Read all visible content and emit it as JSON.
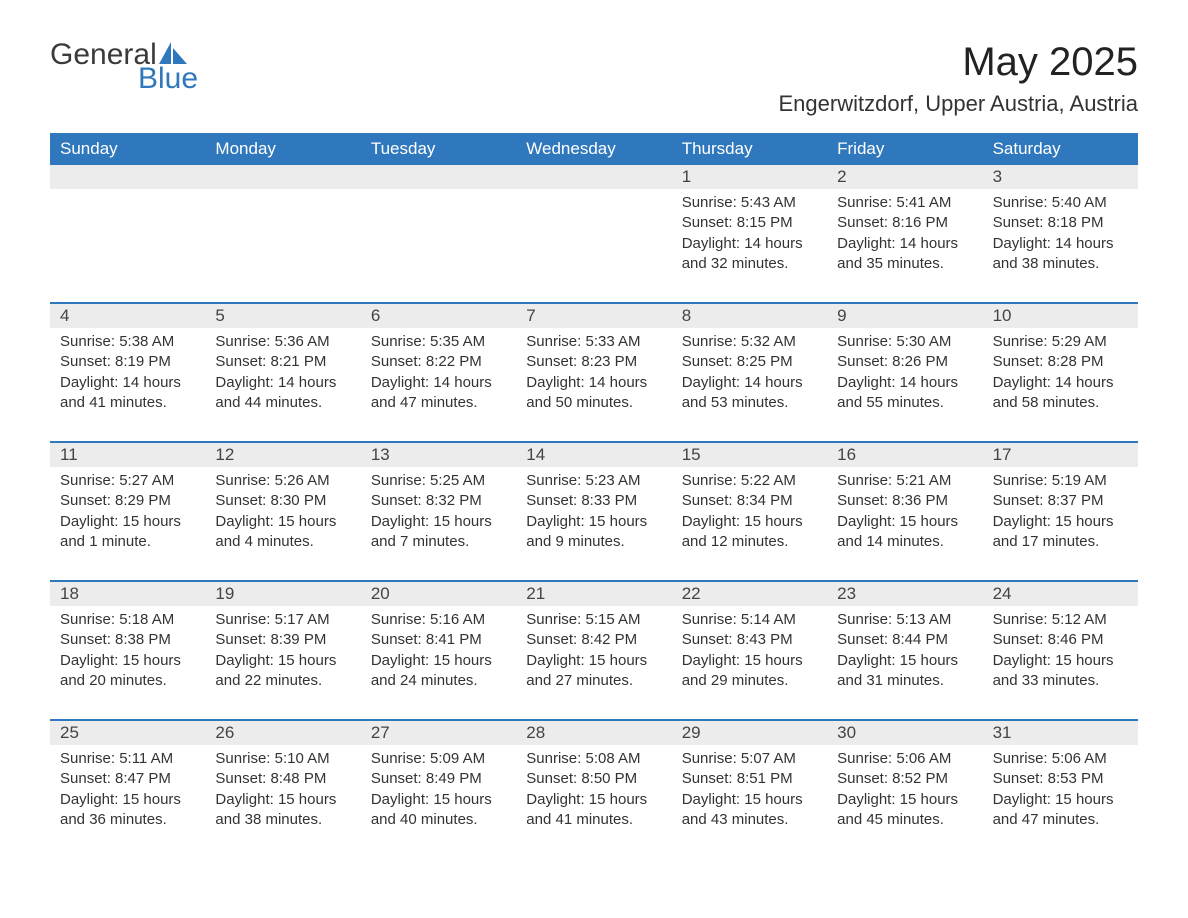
{
  "logo": {
    "text1": "General",
    "text2": "Blue"
  },
  "title": "May 2025",
  "location": "Engerwitzdorf, Upper Austria, Austria",
  "colors": {
    "header_bg": "#2f78bd",
    "header_text": "#ffffff",
    "daynum_bg": "#ececec",
    "text": "#333333",
    "logo_blue": "#2f78bd"
  },
  "dow": [
    "Sunday",
    "Monday",
    "Tuesday",
    "Wednesday",
    "Thursday",
    "Friday",
    "Saturday"
  ],
  "labels": {
    "sunrise": "Sunrise:",
    "sunset": "Sunset:",
    "daylight": "Daylight:"
  },
  "weeks": [
    [
      null,
      null,
      null,
      null,
      {
        "n": "1",
        "sr": "5:43 AM",
        "ss": "8:15 PM",
        "dl": "14 hours and 32 minutes."
      },
      {
        "n": "2",
        "sr": "5:41 AM",
        "ss": "8:16 PM",
        "dl": "14 hours and 35 minutes."
      },
      {
        "n": "3",
        "sr": "5:40 AM",
        "ss": "8:18 PM",
        "dl": "14 hours and 38 minutes."
      }
    ],
    [
      {
        "n": "4",
        "sr": "5:38 AM",
        "ss": "8:19 PM",
        "dl": "14 hours and 41 minutes."
      },
      {
        "n": "5",
        "sr": "5:36 AM",
        "ss": "8:21 PM",
        "dl": "14 hours and 44 minutes."
      },
      {
        "n": "6",
        "sr": "5:35 AM",
        "ss": "8:22 PM",
        "dl": "14 hours and 47 minutes."
      },
      {
        "n": "7",
        "sr": "5:33 AM",
        "ss": "8:23 PM",
        "dl": "14 hours and 50 minutes."
      },
      {
        "n": "8",
        "sr": "5:32 AM",
        "ss": "8:25 PM",
        "dl": "14 hours and 53 minutes."
      },
      {
        "n": "9",
        "sr": "5:30 AM",
        "ss": "8:26 PM",
        "dl": "14 hours and 55 minutes."
      },
      {
        "n": "10",
        "sr": "5:29 AM",
        "ss": "8:28 PM",
        "dl": "14 hours and 58 minutes."
      }
    ],
    [
      {
        "n": "11",
        "sr": "5:27 AM",
        "ss": "8:29 PM",
        "dl": "15 hours and 1 minute."
      },
      {
        "n": "12",
        "sr": "5:26 AM",
        "ss": "8:30 PM",
        "dl": "15 hours and 4 minutes."
      },
      {
        "n": "13",
        "sr": "5:25 AM",
        "ss": "8:32 PM",
        "dl": "15 hours and 7 minutes."
      },
      {
        "n": "14",
        "sr": "5:23 AM",
        "ss": "8:33 PM",
        "dl": "15 hours and 9 minutes."
      },
      {
        "n": "15",
        "sr": "5:22 AM",
        "ss": "8:34 PM",
        "dl": "15 hours and 12 minutes."
      },
      {
        "n": "16",
        "sr": "5:21 AM",
        "ss": "8:36 PM",
        "dl": "15 hours and 14 minutes."
      },
      {
        "n": "17",
        "sr": "5:19 AM",
        "ss": "8:37 PM",
        "dl": "15 hours and 17 minutes."
      }
    ],
    [
      {
        "n": "18",
        "sr": "5:18 AM",
        "ss": "8:38 PM",
        "dl": "15 hours and 20 minutes."
      },
      {
        "n": "19",
        "sr": "5:17 AM",
        "ss": "8:39 PM",
        "dl": "15 hours and 22 minutes."
      },
      {
        "n": "20",
        "sr": "5:16 AM",
        "ss": "8:41 PM",
        "dl": "15 hours and 24 minutes."
      },
      {
        "n": "21",
        "sr": "5:15 AM",
        "ss": "8:42 PM",
        "dl": "15 hours and 27 minutes."
      },
      {
        "n": "22",
        "sr": "5:14 AM",
        "ss": "8:43 PM",
        "dl": "15 hours and 29 minutes."
      },
      {
        "n": "23",
        "sr": "5:13 AM",
        "ss": "8:44 PM",
        "dl": "15 hours and 31 minutes."
      },
      {
        "n": "24",
        "sr": "5:12 AM",
        "ss": "8:46 PM",
        "dl": "15 hours and 33 minutes."
      }
    ],
    [
      {
        "n": "25",
        "sr": "5:11 AM",
        "ss": "8:47 PM",
        "dl": "15 hours and 36 minutes."
      },
      {
        "n": "26",
        "sr": "5:10 AM",
        "ss": "8:48 PM",
        "dl": "15 hours and 38 minutes."
      },
      {
        "n": "27",
        "sr": "5:09 AM",
        "ss": "8:49 PM",
        "dl": "15 hours and 40 minutes."
      },
      {
        "n": "28",
        "sr": "5:08 AM",
        "ss": "8:50 PM",
        "dl": "15 hours and 41 minutes."
      },
      {
        "n": "29",
        "sr": "5:07 AM",
        "ss": "8:51 PM",
        "dl": "15 hours and 43 minutes."
      },
      {
        "n": "30",
        "sr": "5:06 AM",
        "ss": "8:52 PM",
        "dl": "15 hours and 45 minutes."
      },
      {
        "n": "31",
        "sr": "5:06 AM",
        "ss": "8:53 PM",
        "dl": "15 hours and 47 minutes."
      }
    ]
  ]
}
